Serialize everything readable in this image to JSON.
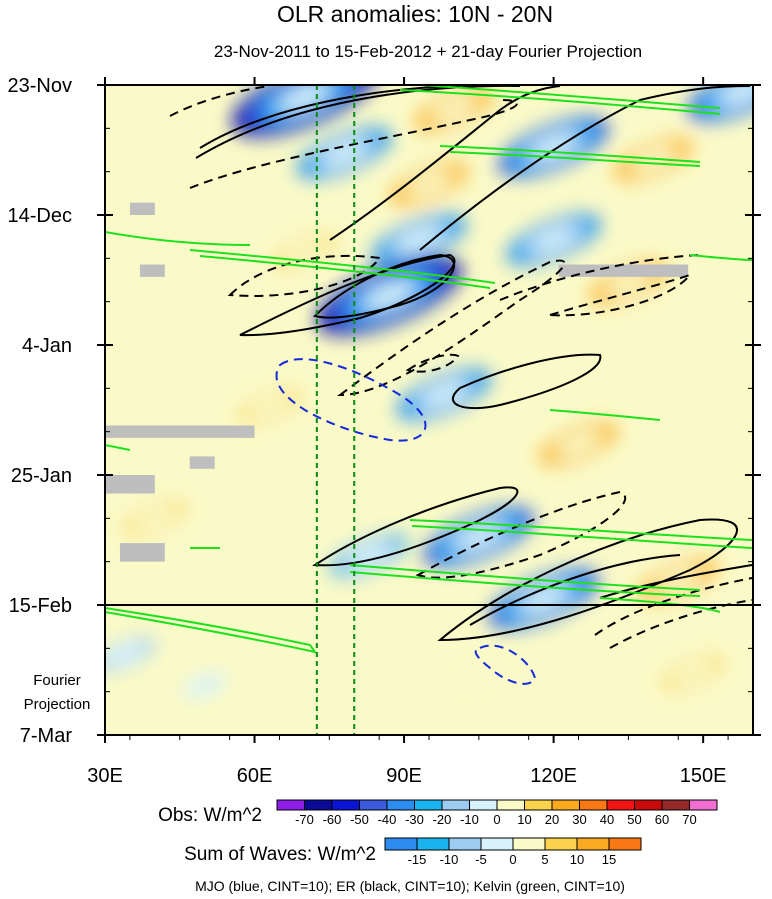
{
  "chart_data": {
    "type": "heatmap",
    "title": "OLR anomalies: 10N - 20N",
    "subtitle": "23-Nov-2011 to 15-Feb-2012 + 21-day Fourier Projection",
    "x_axis": {
      "ticks": [
        30,
        60,
        90,
        120,
        150
      ],
      "tick_labels": [
        "30E",
        "60E",
        "90E",
        "120E",
        "150E"
      ],
      "range": [
        30,
        160
      ]
    },
    "y_axis": {
      "tick_labels": [
        "23-Nov",
        "14-Dec",
        "4-Jan",
        "25-Jan",
        "15-Feb",
        "7-Mar"
      ],
      "tick_days": [
        0,
        21,
        42,
        63,
        84,
        105
      ],
      "range_days": [
        0,
        105
      ],
      "projection_start_day": 84,
      "projection_label": [
        "Fourier",
        "Projection"
      ]
    },
    "reference_lines_lon": [
      72.5,
      80
    ],
    "obs_colorbar": {
      "label": "Obs: W/m^2",
      "levels": [
        "-70",
        "-60",
        "-50",
        "-40",
        "-30",
        "-20",
        "-10",
        "0",
        "10",
        "20",
        "30",
        "40",
        "50",
        "60",
        "70"
      ],
      "colors": [
        "#8c1ee6",
        "#0a0a96",
        "#0a14d2",
        "#3c5adc",
        "#2d8cf0",
        "#19b4f0",
        "#9ecbf2",
        "#d7f2fa",
        "#fafac8",
        "#fad24b",
        "#faaa1e",
        "#fa7814",
        "#f01414",
        "#c80a0a",
        "#962828",
        "#f06ed2"
      ]
    },
    "wave_colorbar": {
      "label": "Sum of Waves: W/m^2",
      "levels": [
        "-15",
        "-10",
        "-5",
        "0",
        "5",
        "10",
        "15"
      ],
      "colors": [
        "#2d8cf0",
        "#19b4f0",
        "#9ecbf2",
        "#d7f2fa",
        "#fafac8",
        "#fad24b",
        "#faaa1e",
        "#fa7814"
      ]
    },
    "footer": "MJO (blue, CINT=10); ER (black, CINT=10); Kelvin (green, CINT=10)",
    "anomaly_centers": [
      {
        "lon": 70,
        "day": 2,
        "value": -70
      },
      {
        "lon": 120,
        "day": 10,
        "value": -50
      },
      {
        "lon": 78,
        "day": 11,
        "value": -40
      },
      {
        "lon": 93,
        "day": 25,
        "value": -40
      },
      {
        "lon": 120,
        "day": 25,
        "value": -40
      },
      {
        "lon": 87,
        "day": 34,
        "value": -70
      },
      {
        "lon": 98,
        "day": 50,
        "value": -40
      },
      {
        "lon": 105,
        "day": 73,
        "value": -50
      },
      {
        "lon": 118,
        "day": 83,
        "value": -45
      },
      {
        "lon": 158,
        "day": 1,
        "value": -50
      },
      {
        "lon": 83,
        "day": 76,
        "value": -25
      },
      {
        "lon": 34,
        "day": 92,
        "value": -20
      },
      {
        "lon": 50,
        "day": 97,
        "value": -10
      },
      {
        "lon": 100,
        "day": 4,
        "value": 25
      },
      {
        "lon": 95,
        "day": 16,
        "value": 30
      },
      {
        "lon": 140,
        "day": 12,
        "value": 25
      },
      {
        "lon": 70,
        "day": 27,
        "value": 20
      },
      {
        "lon": 135,
        "day": 32,
        "value": 25
      },
      {
        "lon": 63,
        "day": 52,
        "value": 20
      },
      {
        "lon": 125,
        "day": 58,
        "value": 25
      },
      {
        "lon": 145,
        "day": 80,
        "value": 25
      },
      {
        "lon": 148,
        "day": 95,
        "value": 15
      },
      {
        "lon": 105,
        "day": 95,
        "value": 10
      },
      {
        "lon": 40,
        "day": 70,
        "value": 20
      }
    ],
    "missing_data": [
      {
        "lon0": 35,
        "lon1": 40,
        "day0": 19,
        "day1": 21
      },
      {
        "lon0": 37,
        "lon1": 42,
        "day0": 29,
        "day1": 31
      },
      {
        "lon0": 30,
        "lon1": 60,
        "day0": 55,
        "day1": 57
      },
      {
        "lon0": 47,
        "lon1": 52,
        "day0": 60,
        "day1": 62
      },
      {
        "lon0": 30,
        "lon1": 40,
        "day0": 63,
        "day1": 66
      },
      {
        "lon0": 33,
        "lon1": 42,
        "day0": 74,
        "day1": 77
      },
      {
        "lon0": 121,
        "lon1": 147,
        "day0": 29,
        "day1": 31
      }
    ]
  }
}
